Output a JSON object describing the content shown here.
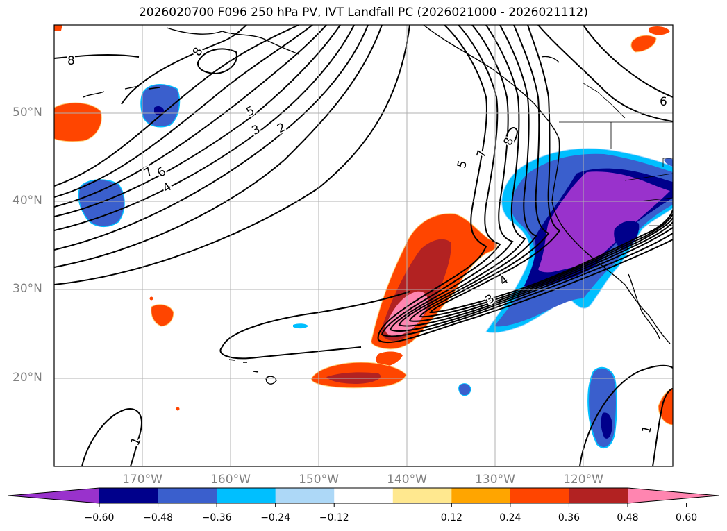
{
  "title": "2026020700 F096 250 hPa PV, IVT Landfall PC (2026021000 - 2026021112)",
  "lat_labels": [
    "50°N",
    "40°N",
    "30°N",
    "20°N"
  ],
  "lon_labels": [
    "170°W",
    "160°W",
    "150°W",
    "140°W",
    "130°W",
    "120°W"
  ],
  "contour_labels": [
    "8",
    "8",
    "6",
    "5",
    "3",
    "2",
    "7",
    "6",
    "4",
    "5",
    "7",
    "8",
    "3",
    "4",
    "1",
    "1"
  ],
  "colorbar": {
    "tick_labels": [
      "−0.60",
      "−0.48",
      "−0.36",
      "−0.24",
      "−0.12",
      "0.12",
      "0.24",
      "0.36",
      "0.48",
      "0.60"
    ],
    "colors": [
      "#9932cc",
      "#00008b",
      "#3a5fcd",
      "#00bfff",
      "#add8f7",
      "#ffffff",
      "#ffe88f",
      "#ffa500",
      "#ff4500",
      "#b22222",
      "#ff85b0"
    ]
  }
}
